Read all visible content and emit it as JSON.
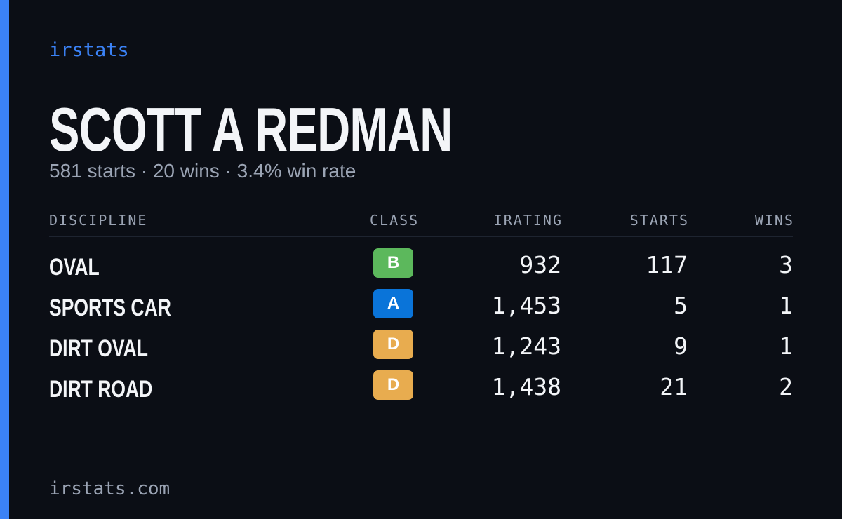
{
  "brand": "irstats",
  "profile": {
    "name": "SCOTT A REDMAN",
    "summary": "581 starts · 20 wins · 3.4% win rate"
  },
  "table": {
    "headers": [
      "DISCIPLINE",
      "CLASS",
      "IRATING",
      "STARTS",
      "WINS"
    ],
    "rows": [
      [
        "OVAL",
        "B",
        "932",
        "117",
        "3"
      ],
      [
        "SPORTS CAR",
        "A",
        "1,453",
        "5",
        "1"
      ],
      [
        "DIRT OVAL",
        "D",
        "1,243",
        "9",
        "1"
      ],
      [
        "DIRT ROAD",
        "D",
        "1,438",
        "21",
        "2"
      ]
    ]
  },
  "footer": "irstats.com"
}
